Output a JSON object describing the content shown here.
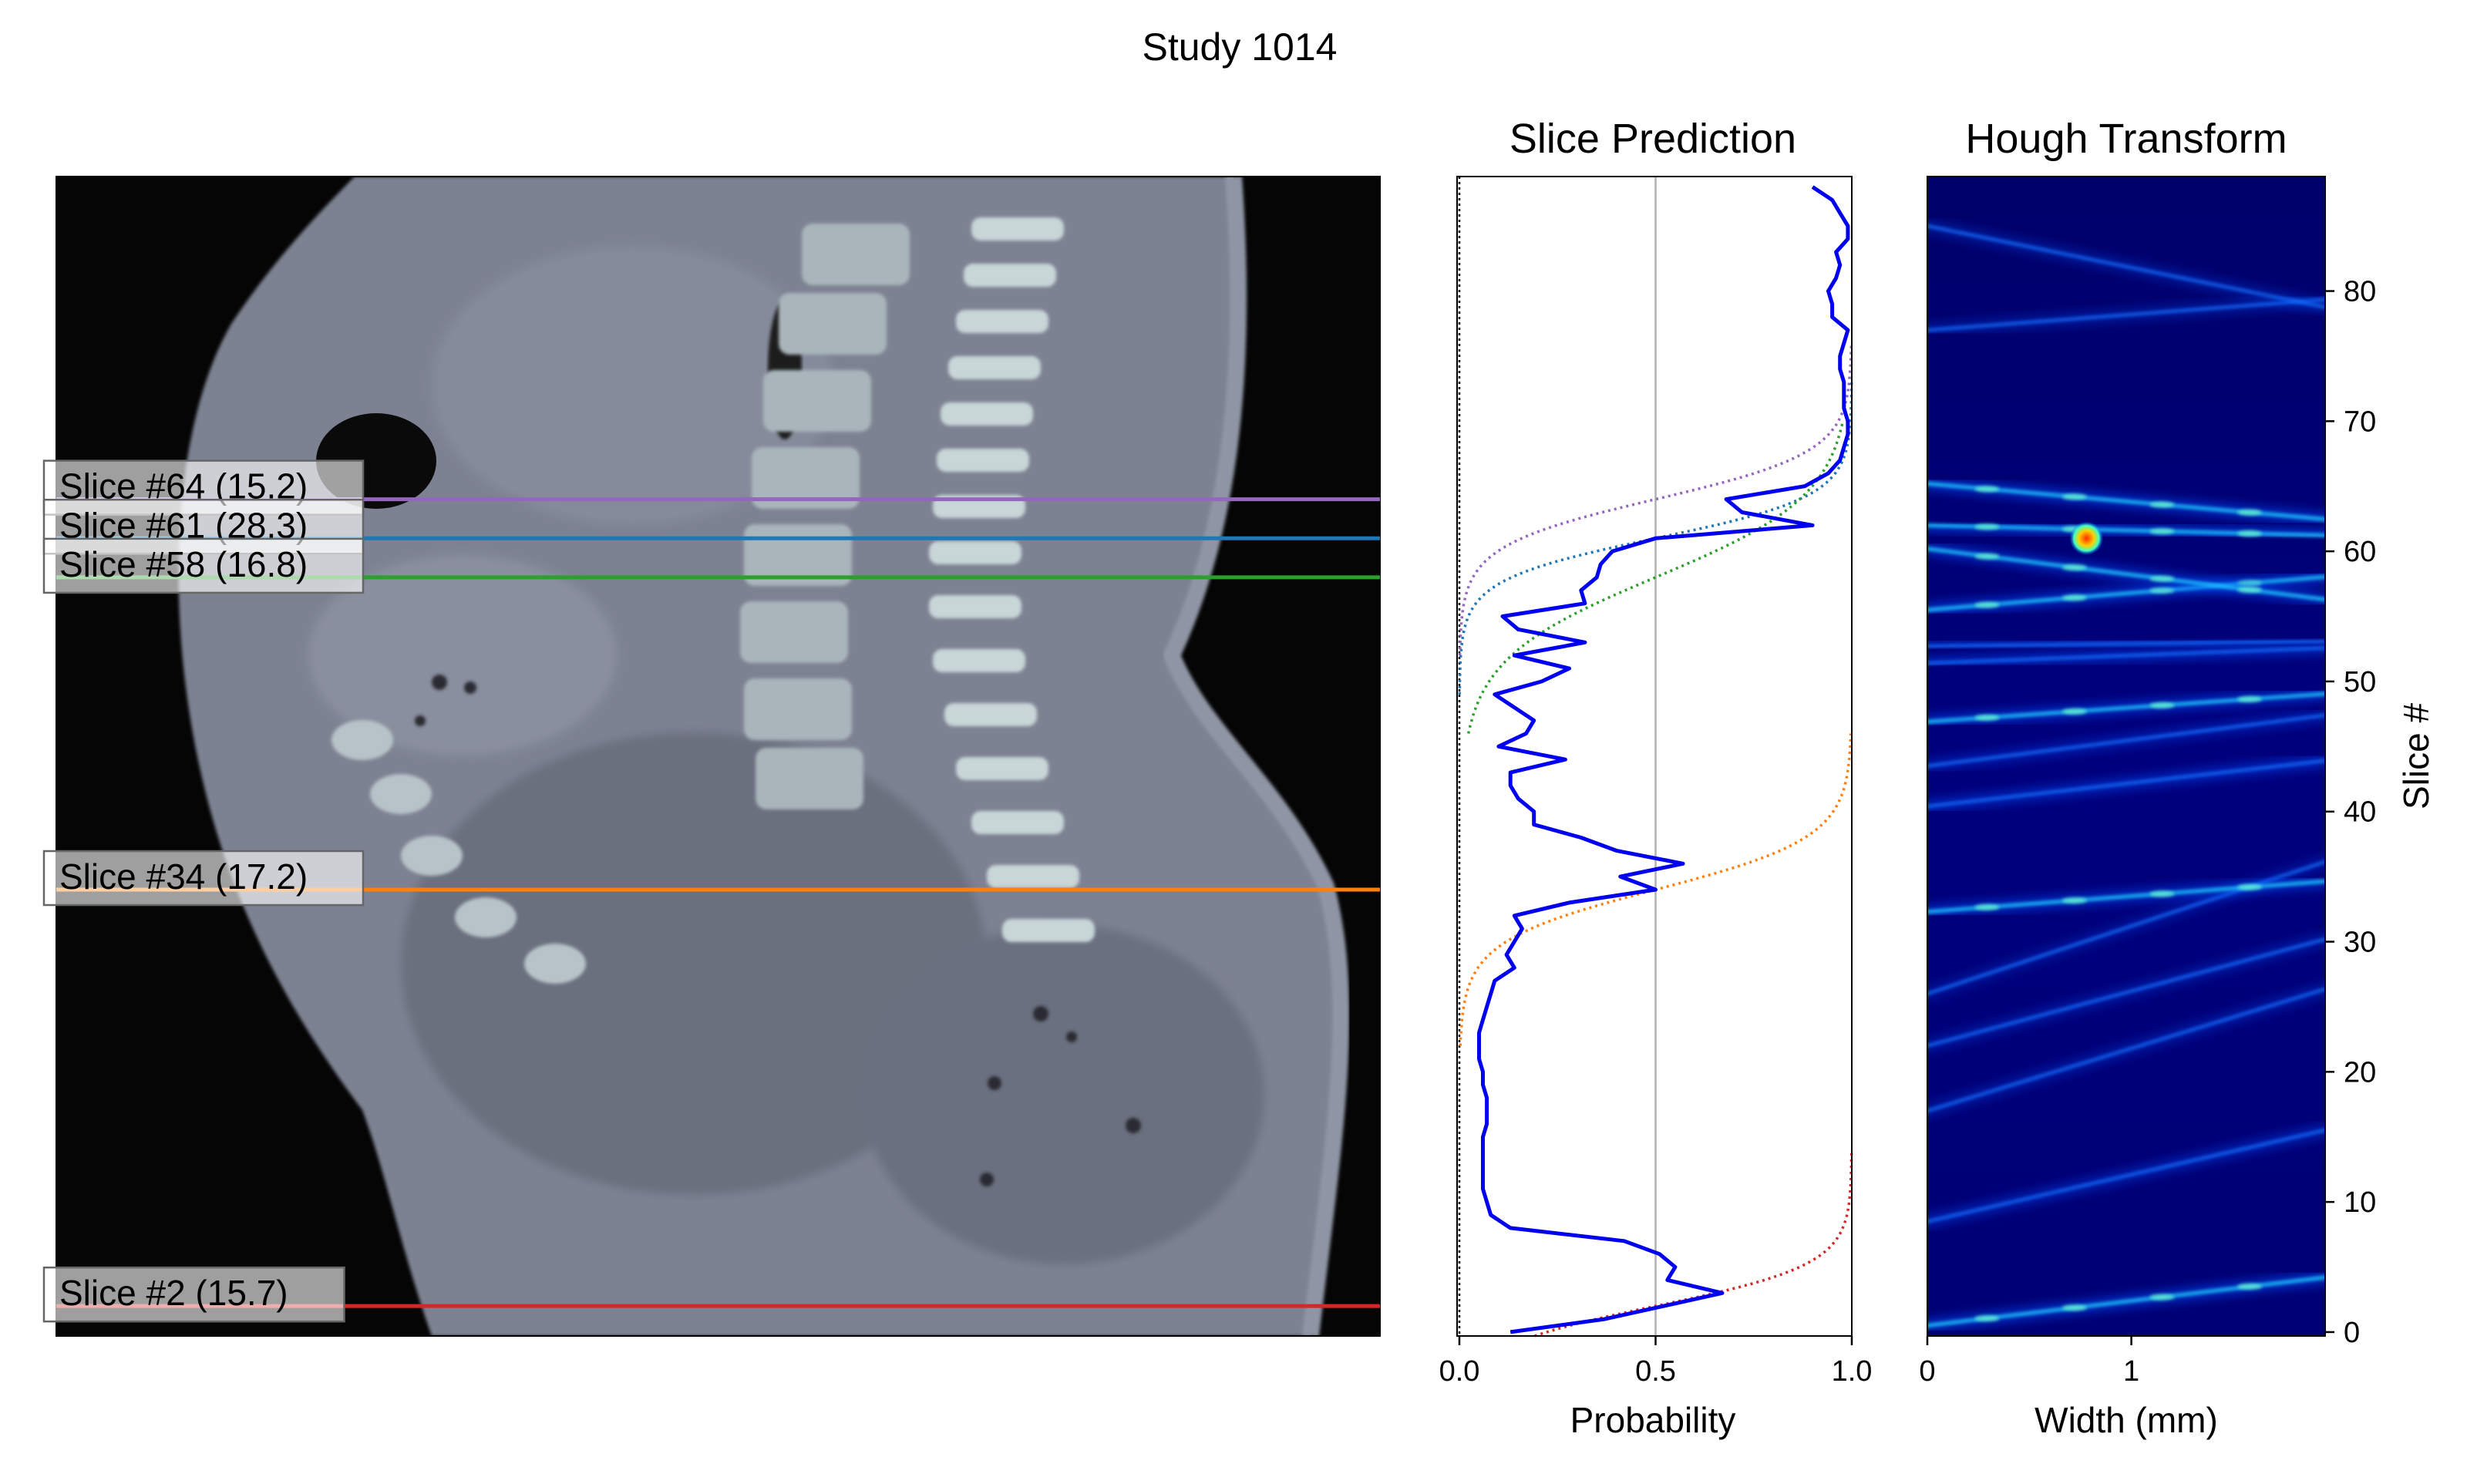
{
  "title": "Study 1014",
  "ct_panel": {
    "markers": [
      {
        "label": "Slice #64 (15.2)",
        "slice": 64,
        "color": "#9467bd"
      },
      {
        "label": "Slice #61 (28.3)",
        "slice": 61,
        "color": "#1f77b4"
      },
      {
        "label": "Slice #58 (16.8)",
        "slice": 58,
        "color": "#2ca02c"
      },
      {
        "label": "Slice #34 (17.2)",
        "slice": 34,
        "color": "#ff7f0e"
      },
      {
        "label": "Slice #2 (15.7)",
        "slice": 2,
        "color": "#d62728"
      }
    ]
  },
  "chart_data": [
    {
      "type": "line",
      "title": "Slice Prediction",
      "xlabel": "Probability",
      "ylabel": "",
      "xlim": [
        0,
        1
      ],
      "ylim": [
        -0.3,
        88.8
      ],
      "xticks": [
        "0.0",
        "0.5",
        "1.0"
      ],
      "vline": 0.5,
      "series": [
        {
          "color": "#0000ee",
          "y": [
            0,
            1,
            2,
            3,
            4,
            5,
            6,
            7,
            8,
            9,
            10,
            11,
            12,
            13,
            14,
            15,
            16,
            17,
            18,
            19,
            20,
            21,
            22,
            23,
            24,
            25,
            26,
            27,
            28,
            29,
            30,
            31,
            32,
            33,
            34,
            35,
            36,
            37,
            38,
            39,
            40,
            41,
            42,
            43,
            44,
            45,
            46,
            47,
            48,
            49,
            50,
            51,
            52,
            53,
            54,
            55,
            56,
            57,
            58,
            59,
            60,
            61,
            62,
            63,
            64,
            65,
            66,
            67,
            68,
            69,
            70,
            71,
            72,
            73,
            74,
            75,
            76,
            77,
            78,
            79,
            80,
            81,
            82,
            83,
            84,
            85,
            86,
            87,
            88
          ],
          "x": [
            0.13,
            0.37,
            0.52,
            0.67,
            0.53,
            0.55,
            0.51,
            0.42,
            0.13,
            0.08,
            0.07,
            0.06,
            0.06,
            0.06,
            0.06,
            0.06,
            0.07,
            0.07,
            0.07,
            0.06,
            0.06,
            0.05,
            0.05,
            0.05,
            0.06,
            0.07,
            0.08,
            0.09,
            0.14,
            0.12,
            0.14,
            0.16,
            0.14,
            0.28,
            0.5,
            0.41,
            0.57,
            0.4,
            0.31,
            0.19,
            0.19,
            0.15,
            0.13,
            0.13,
            0.27,
            0.1,
            0.17,
            0.19,
            0.14,
            0.09,
            0.21,
            0.28,
            0.14,
            0.32,
            0.15,
            0.11,
            0.32,
            0.31,
            0.35,
            0.36,
            0.39,
            0.5,
            0.9,
            0.72,
            0.68,
            0.88,
            0.94,
            0.97,
            0.98,
            0.99,
            0.99,
            0.98,
            0.98,
            0.98,
            0.97,
            0.97,
            0.98,
            0.99,
            0.95,
            0.95,
            0.94,
            0.96,
            0.97,
            0.96,
            0.99,
            0.99,
            0.97,
            0.95,
            0.9
          ]
        }
      ],
      "sigmoids": [
        {
          "center": 64,
          "width": 1.8,
          "color": "#9467bd"
        },
        {
          "center": 61,
          "width": 1.6,
          "color": "#1f77b4"
        },
        {
          "center": 58,
          "width": 3.2,
          "color": "#2ca02c"
        },
        {
          "center": 34,
          "width": 2.0,
          "color": "#ff7f0e"
        },
        {
          "center": 2,
          "width": 1.6,
          "color": "#d62728"
        }
      ]
    },
    {
      "type": "heatmap",
      "title": "Hough Transform",
      "xlabel": "Width (mm)",
      "ylabel": "Slice #",
      "xlim": [
        0,
        1.95
      ],
      "ylim": [
        -0.3,
        88.8
      ],
      "xticks": [
        0,
        1
      ],
      "yticks": [
        0,
        10,
        20,
        30,
        40,
        50,
        60,
        70,
        80
      ],
      "colormap": "jet",
      "lines": [
        {
          "y0": 0.5,
          "slope": 1.9,
          "intensity": 0.55
        },
        {
          "y0": 8.5,
          "slope": 3.6,
          "intensity": 0.4
        },
        {
          "y0": 17.0,
          "slope": 4.8,
          "intensity": 0.3
        },
        {
          "y0": 22.0,
          "slope": 4.2,
          "intensity": 0.3
        },
        {
          "y0": 26.0,
          "slope": 5.2,
          "intensity": 0.25
        },
        {
          "y0": 32.3,
          "slope": 1.2,
          "intensity": 0.5
        },
        {
          "y0": 40.4,
          "slope": 1.8,
          "intensity": 0.45
        },
        {
          "y0": 43.5,
          "slope": 2.0,
          "intensity": 0.35
        },
        {
          "y0": 46.9,
          "slope": 1.1,
          "intensity": 0.5
        },
        {
          "y0": 51.4,
          "slope": 0.6,
          "intensity": 0.45
        },
        {
          "y0": 52.7,
          "slope": 0.2,
          "intensity": 0.4
        },
        {
          "y0": 55.5,
          "slope": 1.3,
          "intensity": 0.55
        },
        {
          "y0": 60.2,
          "slope": -2.0,
          "intensity": 0.5
        },
        {
          "y0": 62.0,
          "slope": -0.4,
          "intensity": 0.55
        },
        {
          "y0": 65.2,
          "slope": -1.4,
          "intensity": 0.55
        },
        {
          "y0": 77.0,
          "slope": 1.2,
          "intensity": 0.3
        },
        {
          "y0": 85.0,
          "slope": -3.2,
          "intensity": 0.3
        }
      ],
      "hotspot": {
        "x": 0.78,
        "y": 61.0
      }
    }
  ]
}
